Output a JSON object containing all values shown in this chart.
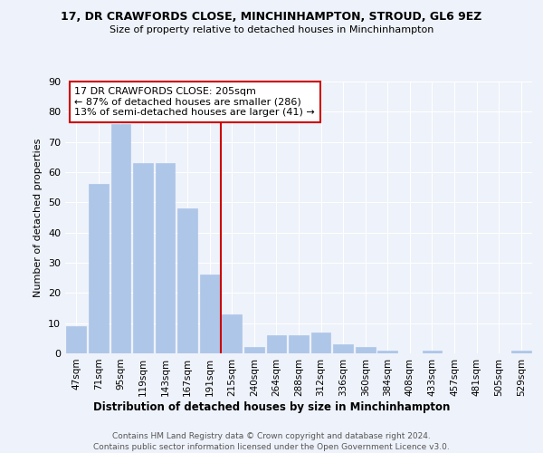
{
  "title": "17, DR CRAWFORDS CLOSE, MINCHINHAMPTON, STROUD, GL6 9EZ",
  "subtitle": "Size of property relative to detached houses in Minchinhampton",
  "xlabel": "Distribution of detached houses by size in Minchinhampton",
  "ylabel": "Number of detached properties",
  "bar_color": "#aec6e8",
  "bar_edge_color": "#aec6e8",
  "background_color": "#eef2fa",
  "grid_color": "#ffffff",
  "categories": [
    "47sqm",
    "71sqm",
    "95sqm",
    "119sqm",
    "143sqm",
    "167sqm",
    "191sqm",
    "215sqm",
    "240sqm",
    "264sqm",
    "288sqm",
    "312sqm",
    "336sqm",
    "360sqm",
    "384sqm",
    "408sqm",
    "433sqm",
    "457sqm",
    "481sqm",
    "505sqm",
    "529sqm"
  ],
  "values": [
    9,
    56,
    76,
    63,
    63,
    48,
    26,
    13,
    2,
    6,
    6,
    7,
    3,
    2,
    1,
    0,
    1,
    0,
    0,
    0,
    1
  ],
  "ylim": [
    0,
    90
  ],
  "yticks": [
    0,
    10,
    20,
    30,
    40,
    50,
    60,
    70,
    80,
    90
  ],
  "vline_index": 7,
  "vline_color": "#cc0000",
  "annotation_text": "17 DR CRAWFORDS CLOSE: 205sqm\n← 87% of detached houses are smaller (286)\n13% of semi-detached houses are larger (41) →",
  "annotation_box_facecolor": "#ffffff",
  "annotation_box_edgecolor": "#cc0000",
  "footer_line1": "Contains HM Land Registry data © Crown copyright and database right 2024.",
  "footer_line2": "Contains public sector information licensed under the Open Government Licence v3.0."
}
